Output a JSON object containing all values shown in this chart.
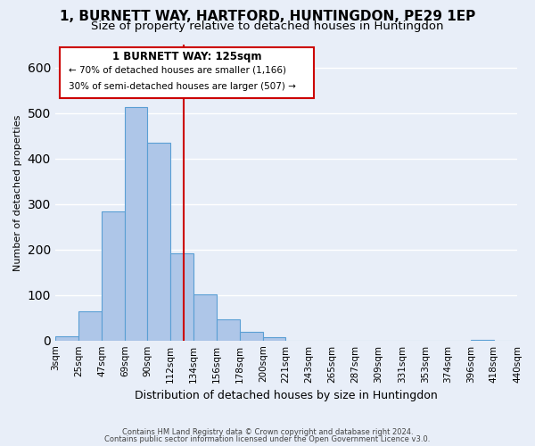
{
  "title": "1, BURNETT WAY, HARTFORD, HUNTINGDON, PE29 1EP",
  "subtitle": "Size of property relative to detached houses in Huntingdon",
  "xlabel": "Distribution of detached houses by size in Huntingdon",
  "ylabel": "Number of detached properties",
  "bar_edges": [
    3,
    25,
    47,
    69,
    90,
    112,
    134,
    156,
    178,
    200,
    221,
    243,
    265,
    287,
    309,
    331,
    353,
    374,
    396,
    418,
    440
  ],
  "bar_heights": [
    10,
    65,
    283,
    512,
    435,
    192,
    101,
    46,
    18,
    8,
    0,
    0,
    0,
    0,
    0,
    0,
    0,
    0,
    2,
    0
  ],
  "bar_color": "#aec6e8",
  "bar_edgecolor": "#5a9fd4",
  "reference_line_x": 125,
  "ylim": [
    0,
    650
  ],
  "xlim": [
    3,
    440
  ],
  "tick_labels": [
    "3sqm",
    "25sqm",
    "47sqm",
    "69sqm",
    "90sqm",
    "112sqm",
    "134sqm",
    "156sqm",
    "178sqm",
    "200sqm",
    "221sqm",
    "243sqm",
    "265sqm",
    "287sqm",
    "309sqm",
    "331sqm",
    "353sqm",
    "374sqm",
    "396sqm",
    "418sqm",
    "440sqm"
  ],
  "annotation_title": "1 BURNETT WAY: 125sqm",
  "annotation_line1": "← 70% of detached houses are smaller (1,166)",
  "annotation_line2": "30% of semi-detached houses are larger (507) →",
  "footnote1": "Contains HM Land Registry data © Crown copyright and database right 2024.",
  "footnote2": "Contains public sector information licensed under the Open Government Licence v3.0.",
  "bg_color": "#e8eef8",
  "plot_bg_color": "#e8eef8",
  "grid_color": "#ffffff",
  "title_fontsize": 11,
  "subtitle_fontsize": 9.5,
  "xlabel_fontsize": 9,
  "ylabel_fontsize": 8,
  "tick_fontsize": 7.5,
  "annotation_box_color": "#ffffff",
  "annotation_box_edgecolor": "#cc0000",
  "reference_line_color": "#cc0000"
}
